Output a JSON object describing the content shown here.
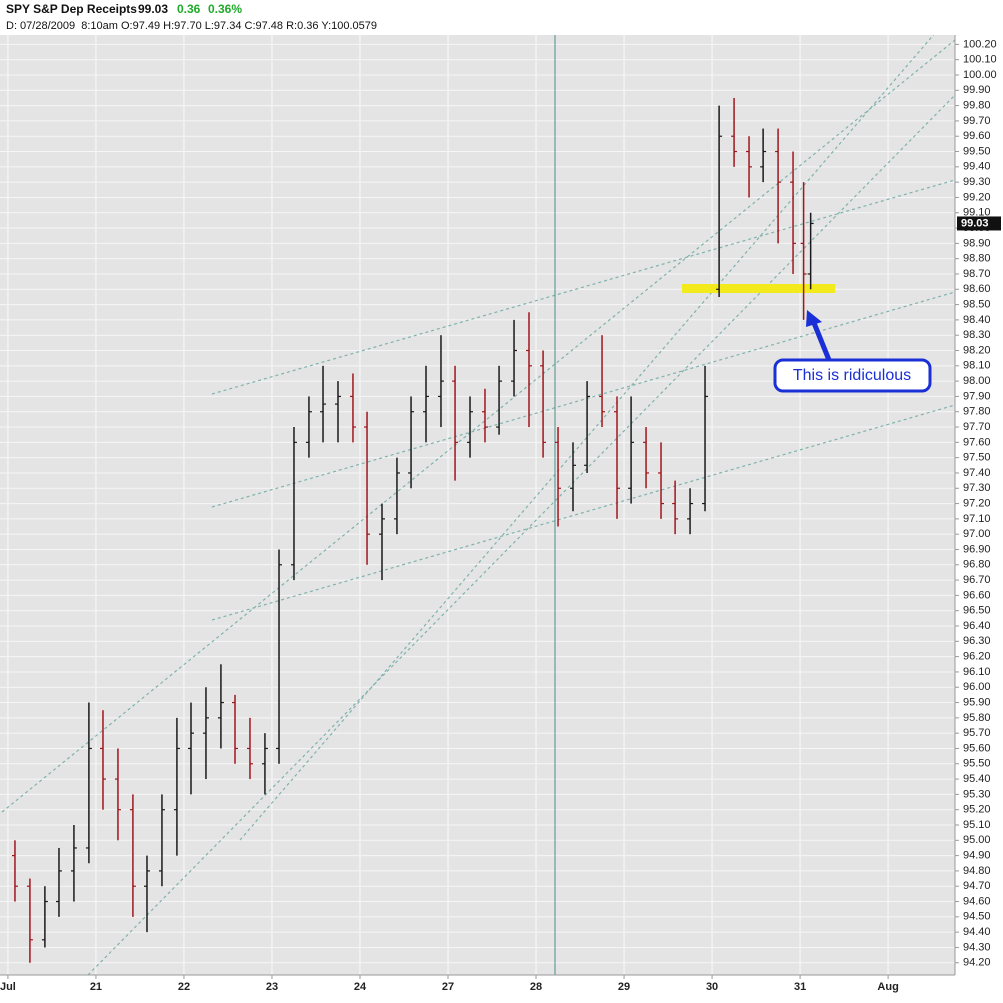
{
  "chart_data": {
    "type": "ohlc",
    "title": "SPY S&P Dep Receipts",
    "last_price": 99.03,
    "change": "0.36",
    "change_pct": "0.36%",
    "info": "D: 07/28/2009  8:10am O:97.49 H:97.70 L:97.34 C:97.48 R:0.36 Y:100.0579",
    "annotation": "This is ridiculous",
    "up_color": "#1a1a1a",
    "down_color": "#a0161e",
    "grid": true,
    "xlim": [
      -0.09,
      10.76
    ],
    "xticks": [
      {
        "value": 0,
        "label": "Jul"
      },
      {
        "value": 1,
        "label": "21"
      },
      {
        "value": 2,
        "label": "22"
      },
      {
        "value": 3,
        "label": "23"
      },
      {
        "value": 4,
        "label": "24"
      },
      {
        "value": 5,
        "label": "27"
      },
      {
        "value": 6,
        "label": "28"
      },
      {
        "value": 7,
        "label": "29"
      },
      {
        "value": 8,
        "label": "30"
      },
      {
        "value": 9,
        "label": "31"
      },
      {
        "value": 10,
        "label": "Aug"
      }
    ],
    "ylim": [
      94.12,
      100.49
    ],
    "yticks": [
      {
        "value": 94.2,
        "label": "94.20"
      },
      {
        "value": 94.3,
        "label": "94.30"
      },
      {
        "value": 94.4,
        "label": "94.40"
      },
      {
        "value": 94.5,
        "label": "94.50"
      },
      {
        "value": 94.6,
        "label": "94.60"
      },
      {
        "value": 94.7,
        "label": "94.70"
      },
      {
        "value": 94.8,
        "label": "94.80"
      },
      {
        "value": 94.9,
        "label": "94.90"
      },
      {
        "value": 95.0,
        "label": "95.00"
      },
      {
        "value": 95.1,
        "label": "95.10"
      },
      {
        "value": 95.2,
        "label": "95.20"
      },
      {
        "value": 95.3,
        "label": "95.30"
      },
      {
        "value": 95.4,
        "label": "95.40"
      },
      {
        "value": 95.5,
        "label": "95.50"
      },
      {
        "value": 95.6,
        "label": "95.60"
      },
      {
        "value": 95.7,
        "label": "95.70"
      },
      {
        "value": 95.8,
        "label": "95.80"
      },
      {
        "value": 95.9,
        "label": "95.90"
      },
      {
        "value": 96.0,
        "label": "96.00"
      },
      {
        "value": 96.1,
        "label": "96.10"
      },
      {
        "value": 96.2,
        "label": "96.20"
      },
      {
        "value": 96.3,
        "label": "96.30"
      },
      {
        "value": 96.4,
        "label": "96.40"
      },
      {
        "value": 96.5,
        "label": "96.50"
      },
      {
        "value": 96.6,
        "label": "96.60"
      },
      {
        "value": 96.7,
        "label": "96.70"
      },
      {
        "value": 96.8,
        "label": "96.80"
      },
      {
        "value": 96.9,
        "label": "96.90"
      },
      {
        "value": 97.0,
        "label": "97.00"
      },
      {
        "value": 97.1,
        "label": "97.10"
      },
      {
        "value": 97.2,
        "label": "97.20"
      },
      {
        "value": 97.3,
        "label": "97.30"
      },
      {
        "value": 97.4,
        "label": "97.40"
      },
      {
        "value": 97.5,
        "label": "97.50"
      },
      {
        "value": 97.6,
        "label": "97.60"
      },
      {
        "value": 97.7,
        "label": "97.70"
      },
      {
        "value": 97.8,
        "label": "97.80"
      },
      {
        "value": 97.9,
        "label": "97.90"
      },
      {
        "value": 98.0,
        "label": "98.00"
      },
      {
        "value": 98.1,
        "label": "98.10"
      },
      {
        "value": 98.2,
        "label": "98.20"
      },
      {
        "value": 98.3,
        "label": "98.30"
      },
      {
        "value": 98.4,
        "label": "98.40"
      },
      {
        "value": 98.5,
        "label": "98.50"
      },
      {
        "value": 98.6,
        "label": "98.60"
      },
      {
        "value": 98.7,
        "label": "98.70"
      },
      {
        "value": 98.8,
        "label": "98.80"
      },
      {
        "value": 98.9,
        "label": "98.90"
      },
      {
        "value": 99.0,
        "label": "99.00"
      },
      {
        "value": 99.1,
        "label": "99.10"
      },
      {
        "value": 99.2,
        "label": "99.20"
      },
      {
        "value": 99.3,
        "label": "99.30"
      },
      {
        "value": 99.4,
        "label": "99.40"
      },
      {
        "value": 99.5,
        "label": "99.50"
      },
      {
        "value": 99.6,
        "label": "99.60"
      },
      {
        "value": 99.7,
        "label": "99.70"
      },
      {
        "value": 99.8,
        "label": "99.80"
      },
      {
        "value": 99.9,
        "label": "99.90"
      },
      {
        "value": 100.0,
        "label": "100.00"
      },
      {
        "value": 100.1,
        "label": "100.10"
      },
      {
        "value": 100.2,
        "label": "100.20"
      }
    ],
    "x": [
      0.08,
      0.25,
      0.42,
      0.58,
      0.75,
      0.92,
      1.08,
      1.25,
      1.42,
      1.58,
      1.75,
      1.92,
      2.08,
      2.25,
      2.42,
      2.58,
      2.75,
      2.92,
      3.08,
      3.25,
      3.42,
      3.58,
      3.75,
      3.92,
      4.08,
      4.25,
      4.42,
      4.58,
      4.75,
      4.92,
      5.08,
      5.25,
      5.42,
      5.58,
      5.75,
      5.92,
      6.08,
      6.25,
      6.42,
      6.58,
      6.75,
      6.92,
      7.08,
      7.25,
      7.42,
      7.58,
      7.75,
      7.92,
      8.08,
      8.25,
      8.42,
      8.58,
      8.75,
      8.92,
      9.04,
      9.12
    ],
    "open": [
      94.9,
      94.7,
      94.35,
      94.6,
      94.8,
      94.95,
      95.6,
      95.4,
      95.2,
      94.7,
      94.8,
      95.2,
      95.6,
      95.7,
      95.8,
      95.9,
      95.6,
      95.5,
      95.6,
      96.8,
      97.6,
      97.8,
      97.85,
      97.9,
      97.7,
      97.0,
      97.1,
      97.4,
      97.8,
      97.9,
      98.0,
      97.6,
      97.8,
      97.7,
      98.0,
      98.2,
      98.1,
      97.6,
      97.3,
      97.45,
      97.9,
      97.8,
      97.3,
      97.6,
      97.4,
      97.2,
      97.1,
      97.2,
      98.6,
      99.6,
      99.5,
      99.4,
      99.5,
      99.3,
      98.9,
      98.7
    ],
    "high": [
      95.0,
      94.75,
      94.7,
      94.95,
      95.1,
      95.9,
      95.85,
      95.6,
      95.3,
      94.9,
      95.3,
      95.8,
      95.9,
      96.0,
      96.15,
      95.95,
      95.8,
      95.7,
      96.9,
      97.7,
      97.9,
      98.1,
      98.0,
      98.05,
      97.8,
      97.2,
      97.5,
      97.9,
      98.1,
      98.3,
      98.1,
      97.9,
      97.95,
      98.1,
      98.4,
      98.45,
      98.2,
      97.7,
      97.6,
      98.0,
      98.3,
      97.9,
      97.9,
      97.7,
      97.6,
      97.35,
      97.3,
      98.1,
      99.8,
      99.85,
      99.6,
      99.65,
      99.65,
      99.5,
      99.3,
      99.1
    ],
    "low": [
      94.6,
      94.2,
      94.3,
      94.5,
      94.6,
      94.85,
      95.2,
      95.0,
      94.5,
      94.4,
      94.7,
      94.9,
      95.3,
      95.4,
      95.6,
      95.5,
      95.4,
      95.3,
      95.5,
      96.7,
      97.5,
      97.6,
      97.6,
      97.6,
      96.8,
      96.7,
      97.0,
      97.3,
      97.6,
      97.7,
      97.35,
      97.5,
      97.6,
      97.65,
      97.9,
      97.7,
      97.5,
      97.05,
      97.15,
      97.4,
      97.7,
      97.1,
      97.2,
      97.3,
      97.1,
      97.0,
      97.0,
      97.15,
      98.55,
      99.4,
      99.2,
      99.3,
      98.9,
      98.7,
      98.4,
      98.6
    ],
    "close": [
      94.7,
      94.35,
      94.6,
      94.8,
      94.95,
      95.6,
      95.4,
      95.2,
      94.7,
      94.8,
      95.2,
      95.6,
      95.7,
      95.8,
      95.9,
      95.6,
      95.5,
      95.6,
      96.8,
      97.6,
      97.8,
      97.85,
      97.9,
      97.7,
      97.0,
      97.1,
      97.4,
      97.8,
      97.9,
      98.0,
      97.6,
      97.8,
      97.7,
      98.0,
      98.2,
      98.1,
      97.6,
      97.3,
      97.45,
      97.9,
      97.8,
      97.3,
      97.6,
      97.4,
      97.2,
      97.1,
      97.2,
      97.9,
      99.6,
      99.5,
      99.4,
      99.5,
      99.3,
      98.9,
      98.7,
      99.03
    ]
  }
}
